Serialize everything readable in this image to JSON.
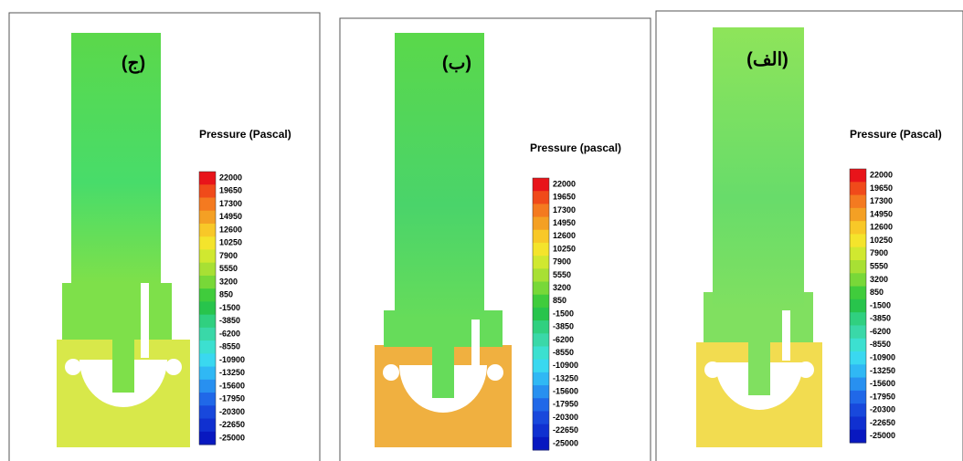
{
  "panels": [
    {
      "label": "(ج)",
      "legend_title": "Pressure (Pascal)",
      "levels": [
        22000,
        19650,
        17300,
        14950,
        12600,
        10250,
        7900,
        5550,
        3200,
        850,
        -1500,
        -3850,
        -6200,
        -8550,
        -10900,
        -13250,
        -15600,
        -17950,
        -20300,
        -22650,
        -25000
      ]
    },
    {
      "label": "(ب)",
      "legend_title": "Pressure (pascal)",
      "levels": [
        22000,
        19650,
        17300,
        14950,
        12600,
        10250,
        7900,
        5550,
        3200,
        850,
        -1500,
        -3850,
        -6200,
        -8550,
        -10900,
        -13250,
        -15600,
        -17950,
        -20300,
        -22650,
        -25000
      ]
    },
    {
      "label": "(الف)",
      "legend_title": "Pressure (Pascal)",
      "levels": [
        22000,
        19650,
        17300,
        14950,
        12600,
        10250,
        7900,
        5550,
        3200,
        850,
        -1500,
        -3850,
        -6200,
        -8550,
        -10900,
        -13250,
        -15600,
        -17950,
        -20300,
        -22650,
        -25000
      ]
    }
  ]
}
